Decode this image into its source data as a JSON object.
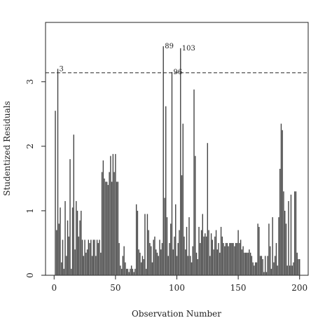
{
  "chart_data": {
    "type": "needle",
    "xlabel": "Observation Number",
    "ylabel": "Studentized Residuals",
    "x": [
      1,
      2,
      3,
      4,
      5,
      6,
      7,
      8,
      9,
      10,
      11,
      12,
      13,
      14,
      15,
      16,
      17,
      18,
      19,
      20,
      21,
      22,
      23,
      24,
      25,
      26,
      27,
      28,
      29,
      30,
      31,
      32,
      33,
      34,
      35,
      36,
      37,
      38,
      39,
      40,
      41,
      42,
      43,
      44,
      45,
      46,
      47,
      48,
      49,
      50,
      51,
      52,
      53,
      54,
      55,
      56,
      57,
      58,
      59,
      60,
      61,
      62,
      63,
      64,
      65,
      66,
      67,
      68,
      69,
      70,
      71,
      72,
      73,
      74,
      75,
      76,
      77,
      78,
      79,
      80,
      81,
      82,
      83,
      84,
      85,
      86,
      87,
      88,
      89,
      90,
      91,
      92,
      93,
      94,
      95,
      96,
      97,
      98,
      99,
      100,
      101,
      102,
      103,
      104,
      105,
      106,
      107,
      108,
      109,
      110,
      111,
      112,
      113,
      114,
      115,
      116,
      117,
      118,
      119,
      120,
      121,
      122,
      123,
      124,
      125,
      126,
      127,
      128,
      129,
      130,
      131,
      132,
      133,
      134,
      135,
      136,
      137,
      138,
      139,
      140,
      141,
      142,
      143,
      144,
      145,
      146,
      147,
      148,
      149,
      150,
      151,
      152,
      153,
      154,
      155,
      156,
      157,
      158,
      159,
      160,
      161,
      162,
      163,
      164,
      165,
      166,
      167,
      168,
      169,
      170,
      171,
      172,
      173,
      174,
      175,
      176,
      177,
      178,
      179,
      180,
      181,
      182,
      183,
      184,
      185,
      186,
      187,
      188,
      189,
      190,
      191,
      192,
      193,
      194,
      195,
      196,
      197,
      198,
      199,
      200
    ],
    "values": [
      2.55,
      0.7,
      3.2,
      0.8,
      1.05,
      0.2,
      0.55,
      0.1,
      1.15,
      0.3,
      0.85,
      0.6,
      1.8,
      0.1,
      1.05,
      2.18,
      0.4,
      1.15,
      1.0,
      0.6,
      0.85,
      1.0,
      0.55,
      0.3,
      0.55,
      0.35,
      0.4,
      0.55,
      0.5,
      0.55,
      0.3,
      0.55,
      0.55,
      0.3,
      0.55,
      0.5,
      0.55,
      0.35,
      1.6,
      1.78,
      1.5,
      1.45,
      1.45,
      1.4,
      1.6,
      1.85,
      1.45,
      1.88,
      1.6,
      1.88,
      1.45,
      1.45,
      0.5,
      0.15,
      0.1,
      0.3,
      0.45,
      0.2,
      0.1,
      0.1,
      0.05,
      0.1,
      0.15,
      0.1,
      0.05,
      0.1,
      1.1,
      1.0,
      0.4,
      0.35,
      0.2,
      0.3,
      0.25,
      0.95,
      0.1,
      0.95,
      0.7,
      0.5,
      0.45,
      0.2,
      0.55,
      0.6,
      0.4,
      0.35,
      0.3,
      0.55,
      0.4,
      0.5,
      3.55,
      1.2,
      2.62,
      0.9,
      0.3,
      0.5,
      0.8,
      3.15,
      0.4,
      0.6,
      1.1,
      0.3,
      0.5,
      0.7,
      3.52,
      1.55,
      2.35,
      0.6,
      0.4,
      0.75,
      0.3,
      0.9,
      0.3,
      0.2,
      0.45,
      2.88,
      1.85,
      0.35,
      0.25,
      0.75,
      0.5,
      0.7,
      0.95,
      0.6,
      0.65,
      0.6,
      2.05,
      0.7,
      0.3,
      0.65,
      0.55,
      0.4,
      0.6,
      0.7,
      0.4,
      0.5,
      0.35,
      0.75,
      0.6,
      0.5,
      0.45,
      0.5,
      0.5,
      0.45,
      0.5,
      0.5,
      0.5,
      0.5,
      0.45,
      0.5,
      0.5,
      0.7,
      0.5,
      0.55,
      0.4,
      0.45,
      0.35,
      0.35,
      0.35,
      0.35,
      0.4,
      0.35,
      0.3,
      0.2,
      0.15,
      0.2,
      0.2,
      0.8,
      0.75,
      0.3,
      0.3,
      0.25,
      0.05,
      0.3,
      0.05,
      0.3,
      0.8,
      0.45,
      0.1,
      0.9,
      0.2,
      0.3,
      0.5,
      0.15,
      0.9,
      1.65,
      2.35,
      2.25,
      1.3,
      1.0,
      0.8,
      0.15,
      1.15,
      0.15,
      1.25,
      0.15,
      0.2,
      1.3,
      1.3,
      0.35,
      0.25,
      0.25
    ],
    "color": "#444444",
    "threshold": 3.14,
    "annotations": [
      {
        "label": "3",
        "x": 3
      },
      {
        "label": "89",
        "x": 89
      },
      {
        "label": "96",
        "x": 96
      },
      {
        "label": "103",
        "x": 103
      }
    ],
    "xlim": [
      -7,
      207
    ],
    "ylim": [
      0,
      3.92
    ],
    "xticks": [
      0,
      50,
      100,
      150,
      200
    ],
    "yticks": [
      0,
      1,
      2,
      3
    ]
  }
}
